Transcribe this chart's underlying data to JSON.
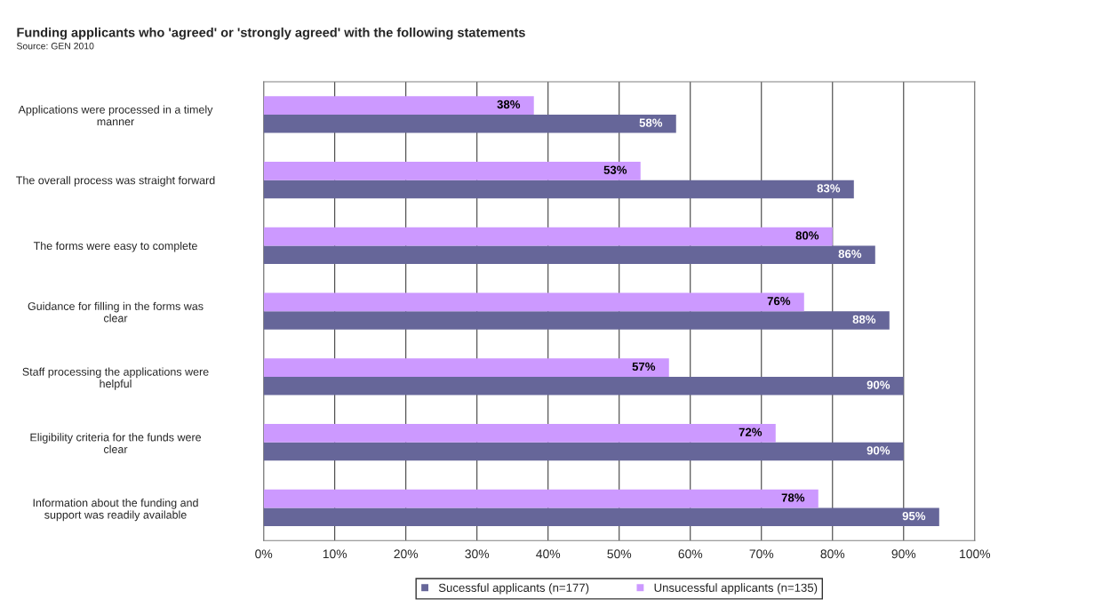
{
  "chart_data": {
    "type": "bar",
    "orientation": "horizontal",
    "title": "Funding applicants who 'agreed' or 'strongly agreed' with the following statements",
    "annotations": [
      "Source: GEN 2010"
    ],
    "categories": [
      "Applications were processed in a timely manner",
      "The overall process was straight forward",
      "The forms were easy to complete",
      "Guidance for filling in the forms was clear",
      "Staff processing the applications were helpful",
      "Eligibility criteria for the funds were clear",
      "Information about the funding and support was readily available"
    ],
    "series": [
      {
        "name": "Sucessful applicants (n=177)",
        "color": "#666699",
        "values": [
          58,
          83,
          86,
          88,
          90,
          90,
          95
        ],
        "value_labels": [
          "58%",
          "83%",
          "86%",
          "88%",
          "90%",
          "90%",
          "95%"
        ]
      },
      {
        "name": "Unsucessful applicants (n=135)",
        "color": "#cc99ff",
        "values": [
          38,
          53,
          80,
          76,
          57,
          72,
          78
        ],
        "value_labels": [
          "38%",
          "53%",
          "80%",
          "76%",
          "57%",
          "72%",
          "78%"
        ]
      }
    ],
    "xlim": [
      0,
      100
    ],
    "xticks": [
      {
        "value": 0,
        "label": "0%"
      },
      {
        "value": 10,
        "label": "10%"
      },
      {
        "value": 20,
        "label": "20%"
      },
      {
        "value": 30,
        "label": "30%"
      },
      {
        "value": 40,
        "label": "40%"
      },
      {
        "value": 50,
        "label": "50%"
      },
      {
        "value": 60,
        "label": "60%"
      },
      {
        "value": 70,
        "label": "70%"
      },
      {
        "value": 80,
        "label": "80%"
      },
      {
        "value": 90,
        "label": "90%"
      },
      {
        "value": 100,
        "label": "100%"
      }
    ],
    "grid": "x",
    "legend": "bottom"
  }
}
